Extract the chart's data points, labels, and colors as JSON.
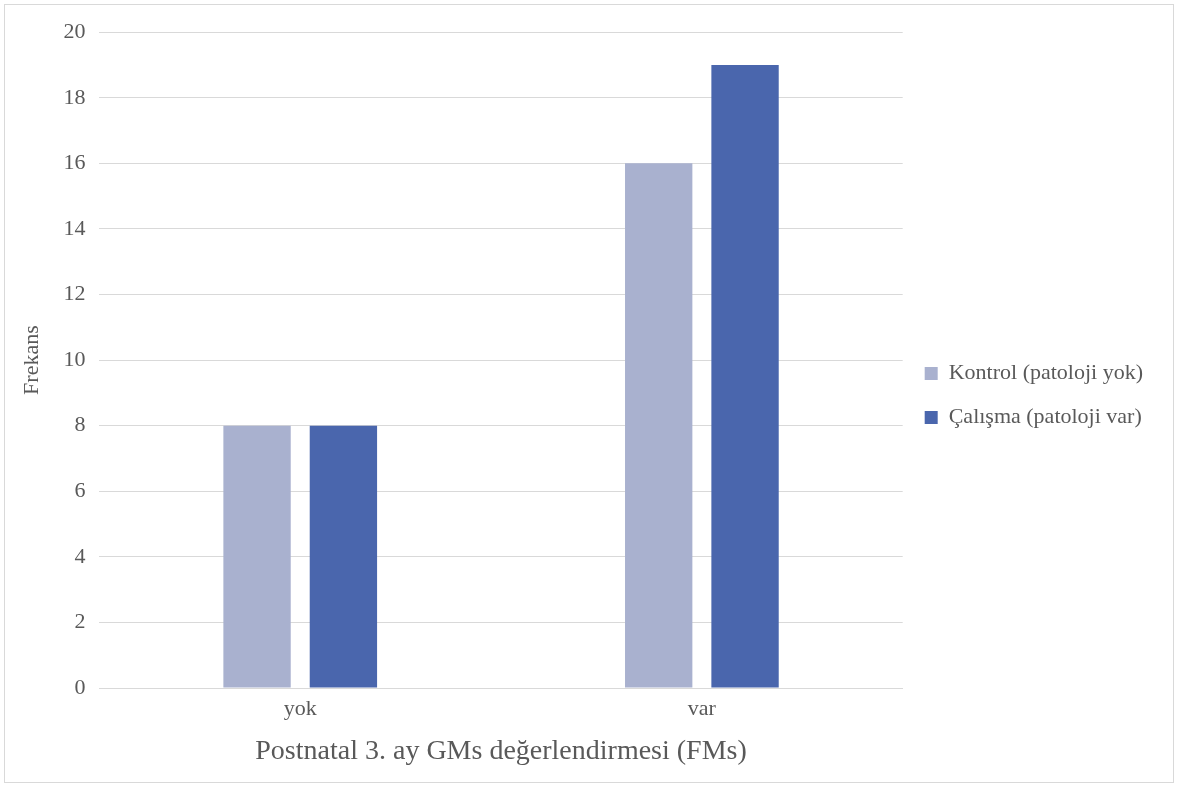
{
  "chart_data": {
    "type": "bar",
    "xlabel": "Postnatal 3. ay GMs değerlendirmesi (FMs)",
    "ylabel": "Frekans",
    "categories": [
      "yok",
      "var"
    ],
    "series": [
      {
        "name": "Kontrol (patoloji yok)",
        "color": "#a9b1cf",
        "values": [
          8,
          16
        ]
      },
      {
        "name": "Çalışma (patoloji var)",
        "color": "#4a66ad",
        "values": [
          8,
          19
        ]
      }
    ],
    "ylim": [
      0,
      20
    ],
    "yticks": [
      0,
      2,
      4,
      6,
      8,
      10,
      12,
      14,
      16,
      18,
      20
    ],
    "grid": "y",
    "legend": "right"
  }
}
